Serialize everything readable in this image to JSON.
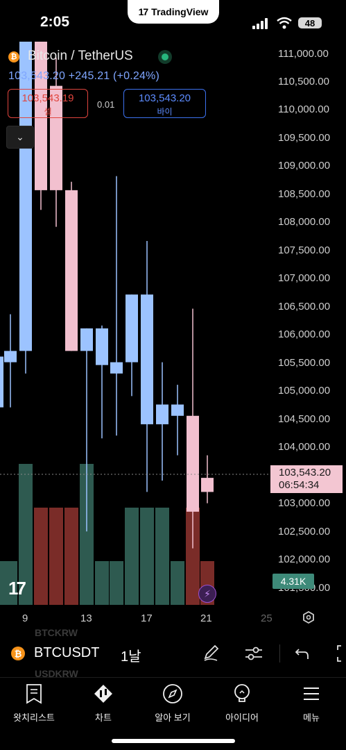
{
  "status_bar": {
    "time": "2:05",
    "battery": "48"
  },
  "brand_pill": {
    "logo": "17",
    "name": "TradingView"
  },
  "header": {
    "coin_glyph": "₿",
    "title": "Bitcoin / TetherUS",
    "price_line": "103,543.20 +245.21 (+0.24%)",
    "sell_price": "103,543.19",
    "sell_label": "셀",
    "spread": "0.01",
    "buy_price": "103,543.20",
    "buy_label": "바이",
    "collapse_glyph": "⌄"
  },
  "price_axis": [
    "111,000.00",
    "110,500.00",
    "110,000.00",
    "109,500.00",
    "109,000.00",
    "108,500.00",
    "108,000.00",
    "107,500.00",
    "107,000.00",
    "106,500.00",
    "106,000.00",
    "105,500.00",
    "105,000.00",
    "104,500.00",
    "104,000.00",
    "103,000.00",
    "102,500.00",
    "102,000.00",
    "101,500.00"
  ],
  "last_price_tag": {
    "price": "103,543.20",
    "countdown": "06:54:34"
  },
  "volume_tag": "4.31K",
  "x_axis": [
    "9",
    "13",
    "17",
    "21",
    "25"
  ],
  "watermark": "17",
  "colors": {
    "up": "#9cc3ff",
    "down": "#f2c0cf",
    "vol_up": "#2e5a50",
    "vol_down": "#7a2c28",
    "accent_buy": "#3d72f0",
    "accent_sell": "#e0453e"
  },
  "toolbar": {
    "ghost_above": "BTCKRW",
    "ghost_below": "USDKRW",
    "symbol": "BTCUSDT",
    "interval": "1날",
    "icons": [
      "pencil-icon",
      "sliders-icon",
      "undo-icon",
      "fullscreen-icon"
    ]
  },
  "nav": [
    {
      "label": "왓치리스트",
      "icon": "watchlist-icon"
    },
    {
      "label": "차트",
      "icon": "chart-icon"
    },
    {
      "label": "알아 보기",
      "icon": "compass-icon"
    },
    {
      "label": "아이디어",
      "icon": "lightbulb-icon"
    },
    {
      "label": "메뉴",
      "icon": "menu-icon"
    }
  ],
  "chart_data": {
    "type": "candlestick",
    "interval": "1D",
    "x_ticks": [
      "9",
      "13",
      "17",
      "21",
      "25"
    ],
    "y_ticks": [
      101500,
      102000,
      102500,
      103000,
      104000,
      104500,
      105000,
      105500,
      106000,
      106500,
      107000,
      107500,
      108000,
      108500,
      109000,
      109500,
      110000,
      110500,
      111000
    ],
    "ylim": [
      101300,
      111200
    ],
    "last_price": 103543.2,
    "series": [
      {
        "o": 104800,
        "h": 105800,
        "l": 104300,
        "c": 105700,
        "v": "low"
      },
      {
        "o": 105600,
        "h": 106450,
        "l": 104800,
        "c": 105800,
        "v": "low"
      },
      {
        "o": 105800,
        "h": 111500,
        "l": 105400,
        "c": 111500,
        "v": "high"
      },
      {
        "o": 111500,
        "h": 111700,
        "l": 108300,
        "c": 108650,
        "v": "mid"
      },
      {
        "o": 110500,
        "h": 111000,
        "l": 108000,
        "c": 108650,
        "v": "mid"
      },
      {
        "o": 108650,
        "h": 108800,
        "l": 105800,
        "c": 105800,
        "v": "mid"
      },
      {
        "o": 105800,
        "h": 106200,
        "l": 102600,
        "c": 106200,
        "v": "high"
      },
      {
        "o": 105550,
        "h": 106250,
        "l": 104250,
        "c": 106200,
        "v": "low"
      },
      {
        "o": 105400,
        "h": 108900,
        "l": 104300,
        "c": 105600,
        "v": "low"
      },
      {
        "o": 105600,
        "h": 106800,
        "l": 105000,
        "c": 106800,
        "v": "mid"
      },
      {
        "o": 104500,
        "h": 107750,
        "l": 103300,
        "c": 106800,
        "v": "mid"
      },
      {
        "o": 104500,
        "h": 105600,
        "l": 103500,
        "c": 104850,
        "v": "mid"
      },
      {
        "o": 104650,
        "h": 105200,
        "l": 103950,
        "c": 104850,
        "v": "low"
      },
      {
        "o": 104650,
        "h": 106550,
        "l": 102300,
        "c": 102950,
        "v": "mid"
      },
      {
        "o": 103550,
        "h": 103950,
        "l": 103100,
        "c": 103300,
        "v": "low"
      }
    ]
  }
}
